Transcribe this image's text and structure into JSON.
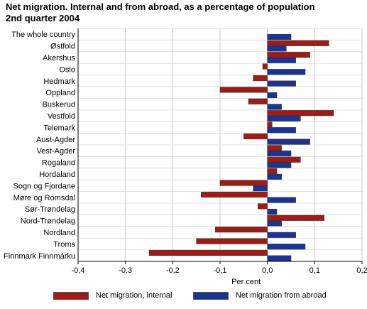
{
  "chart_data": {
    "type": "bar",
    "orientation": "horizontal",
    "title_lines": [
      "Net migration. Internal and from abroad, as a percentage of population",
      "2nd quarter 2004"
    ],
    "xlabel": "Per cent",
    "ylabel": "",
    "xlim": [
      -0.4,
      0.2
    ],
    "xticks": [
      -0.4,
      -0.3,
      -0.2,
      -0.1,
      0.0,
      0.1,
      0.2
    ],
    "xtick_labels": [
      "-0,4",
      "-0,3",
      "-0,2",
      "-0,1",
      "0,0",
      "0,1",
      "0,2"
    ],
    "grid": true,
    "legend_position": "bottom",
    "categories": [
      "The whole country",
      "Østfold",
      "Akershus",
      "Oslo",
      "Hedmark",
      "Oppland",
      "Buskerud",
      "Vestfold",
      "Telemark",
      "Aust-Agder",
      "Vest-Agder",
      "Rogaland",
      "Hordaland",
      "Sogn og Fjordane",
      "Møre og Romsdal",
      "Sør-Trøndelag",
      "Nord-Trøndelag",
      "Nordland",
      "Troms",
      "Finnmark Finnmárku"
    ],
    "series": [
      {
        "name": "Net migration, internal",
        "color": "#9e1b16",
        "values": [
          0.0,
          0.13,
          0.09,
          -0.01,
          -0.03,
          -0.1,
          -0.04,
          0.14,
          0.01,
          -0.05,
          0.03,
          0.07,
          0.02,
          -0.1,
          -0.14,
          -0.02,
          0.12,
          -0.11,
          -0.15,
          -0.25
        ]
      },
      {
        "name": "Net migration from abroad",
        "color": "#1b3391",
        "values": [
          0.05,
          0.04,
          0.06,
          0.08,
          0.06,
          0.02,
          0.03,
          0.07,
          0.06,
          0.09,
          0.05,
          0.05,
          0.03,
          -0.03,
          0.06,
          0.02,
          0.03,
          0.06,
          0.08,
          0.05
        ]
      }
    ]
  }
}
